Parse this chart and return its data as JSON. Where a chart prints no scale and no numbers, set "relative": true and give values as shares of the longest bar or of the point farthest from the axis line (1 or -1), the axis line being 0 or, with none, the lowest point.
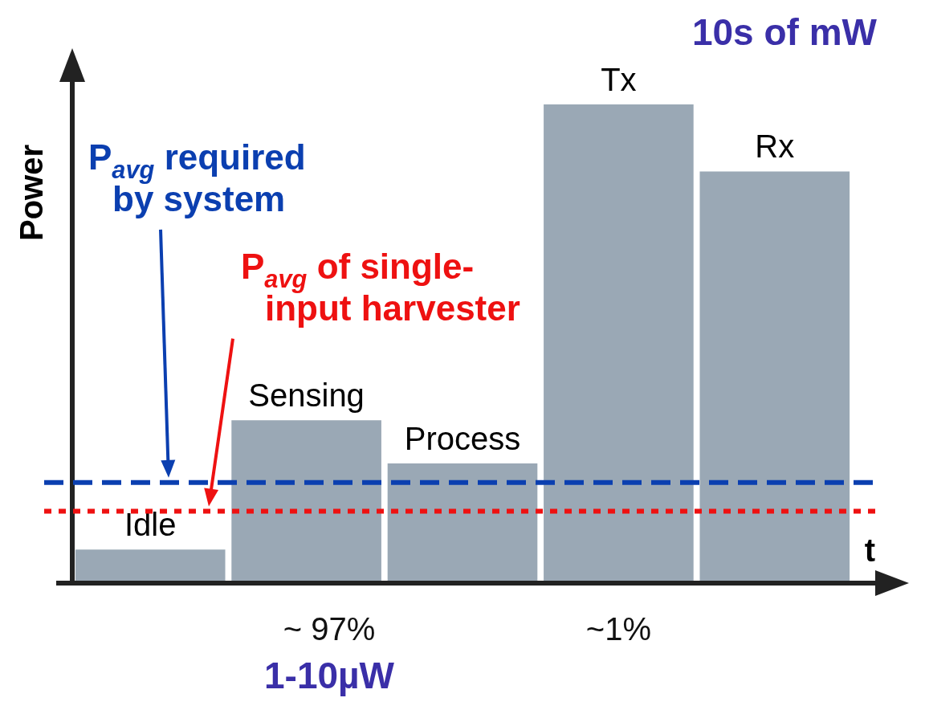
{
  "chart_data": {
    "type": "bar",
    "relative": true,
    "ylabel": "Power",
    "xlabel": "t",
    "categories": [
      "Idle",
      "Sensing",
      "Process",
      "Tx",
      "Rx"
    ],
    "values": [
      0.07,
      0.34,
      0.25,
      1,
      0.86
    ],
    "color": "#9aa8b5",
    "ref_lines": [
      {
        "axis": "y",
        "value": 0.21,
        "label": "P$_{avg}$ required by system",
        "color": "#0b3fb0",
        "line_style": "dashed"
      },
      {
        "axis": "y",
        "value": 0.15,
        "label": "P$_{avg}$ of single-input harvester",
        "color": "#ee1111",
        "line_style": "dotted"
      }
    ],
    "annotations": [
      "10s of mW",
      "1-10µW",
      "~ 97%",
      "~1%"
    ],
    "grid": false,
    "legend": false
  }
}
